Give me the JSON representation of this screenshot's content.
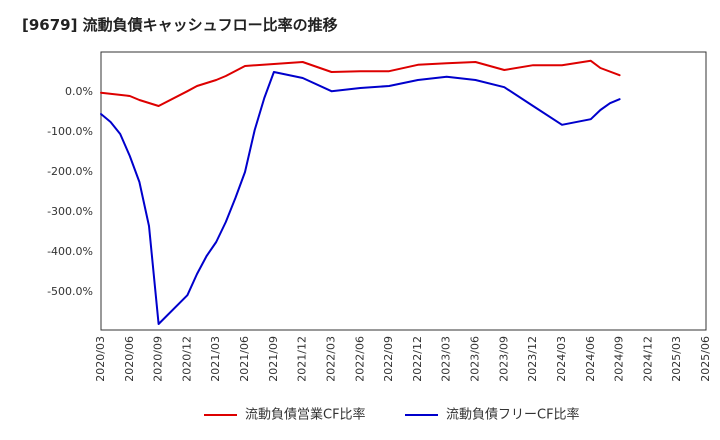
{
  "chart_data": {
    "type": "line",
    "title": "[9679]  流動負債キャッシュフロー比率の推移",
    "xlabel": "",
    "ylabel": "",
    "ylim": [
      -595,
      100
    ],
    "grid": true,
    "legend_position": "bottom",
    "x_tick_labels": [
      "2020/03",
      "2020/06",
      "2020/09",
      "2020/12",
      "2021/03",
      "2021/06",
      "2021/09",
      "2021/12",
      "2022/03",
      "2022/06",
      "2022/09",
      "2022/12",
      "2023/03",
      "2023/06",
      "2023/09",
      "2023/12",
      "2024/03",
      "2024/06",
      "2024/09",
      "2024/12",
      "2025/03",
      "2025/06"
    ],
    "y_ticks": [
      0,
      -100,
      -200,
      -300,
      -400,
      -500
    ],
    "y_tick_labels": [
      "0.0%",
      "-100.0%",
      "-200.0%",
      "-300.0%",
      "-400.0%",
      "-500.0%"
    ],
    "series": [
      {
        "name": "流動負債営業CF比率",
        "color": "#dd0000",
        "points": [
          [
            "2020/03",
            -2
          ],
          [
            "2020/06",
            -10
          ],
          [
            "2020/07",
            -20
          ],
          [
            "2020/09",
            -35
          ],
          [
            "2020/12",
            2
          ],
          [
            "2021/01",
            15
          ],
          [
            "2021/03",
            30
          ],
          [
            "2021/04",
            40
          ],
          [
            "2021/06",
            65
          ],
          [
            "2021/09",
            70
          ],
          [
            "2021/12",
            75
          ],
          [
            "2022/03",
            50
          ],
          [
            "2022/06",
            52
          ],
          [
            "2022/09",
            52
          ],
          [
            "2022/12",
            68
          ],
          [
            "2023/03",
            72
          ],
          [
            "2023/06",
            75
          ],
          [
            "2023/09",
            55
          ],
          [
            "2023/12",
            67
          ],
          [
            "2024/03",
            67
          ],
          [
            "2024/06",
            78
          ],
          [
            "2024/07",
            60
          ],
          [
            "2024/09",
            42
          ]
        ]
      },
      {
        "name": "流動負債フリーCF比率",
        "color": "#0000cc",
        "points": [
          [
            "2020/03",
            -55
          ],
          [
            "2020/04",
            -75
          ],
          [
            "2020/05",
            -105
          ],
          [
            "2020/06",
            -160
          ],
          [
            "2020/07",
            -225
          ],
          [
            "2020/08",
            -335
          ],
          [
            "2020/09",
            -580
          ],
          [
            "2020/12",
            -508
          ],
          [
            "2021/01",
            -455
          ],
          [
            "2021/02",
            -410
          ],
          [
            "2021/03",
            -375
          ],
          [
            "2021/04",
            -325
          ],
          [
            "2021/05",
            -265
          ],
          [
            "2021/06",
            -200
          ],
          [
            "2021/07",
            -95
          ],
          [
            "2021/08",
            -15
          ],
          [
            "2021/09",
            50
          ],
          [
            "2021/12",
            35
          ],
          [
            "2022/03",
            2
          ],
          [
            "2022/06",
            10
          ],
          [
            "2022/09",
            15
          ],
          [
            "2022/12",
            30
          ],
          [
            "2023/03",
            38
          ],
          [
            "2023/06",
            30
          ],
          [
            "2023/09",
            12
          ],
          [
            "2023/12",
            -35
          ],
          [
            "2024/03",
            -82
          ],
          [
            "2024/06",
            -68
          ],
          [
            "2024/07",
            -45
          ],
          [
            "2024/08",
            -28
          ],
          [
            "2024/09",
            -18
          ]
        ]
      }
    ]
  }
}
